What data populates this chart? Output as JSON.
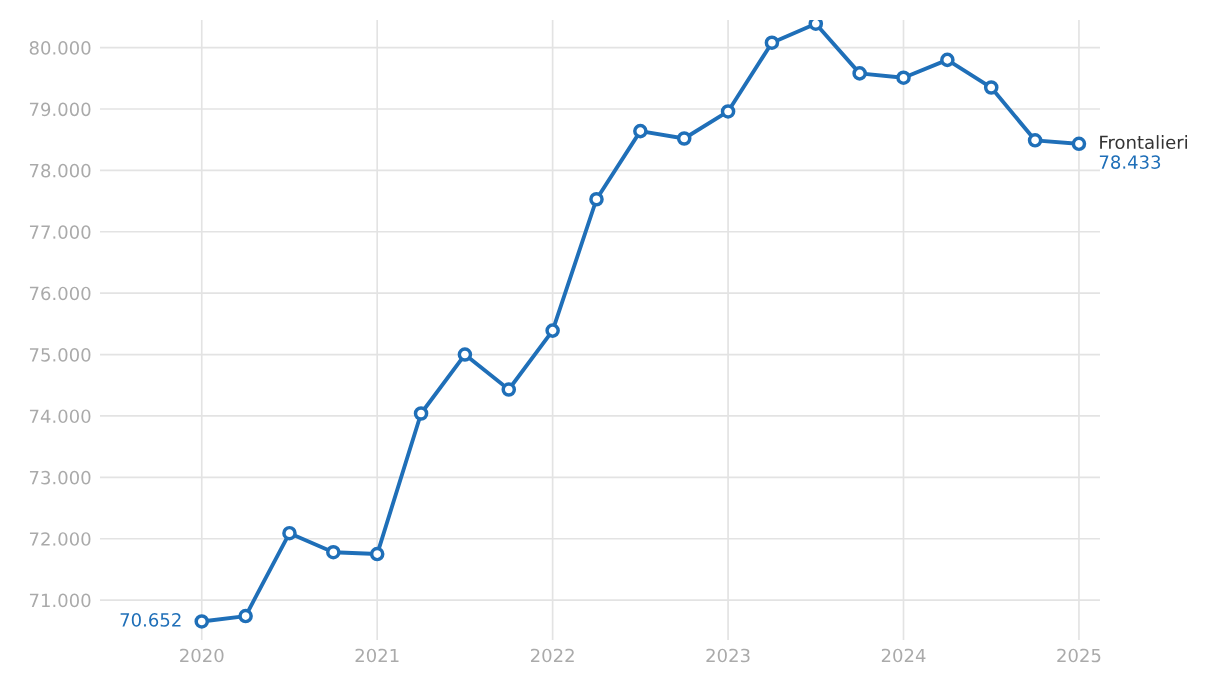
{
  "chart_data": {
    "type": "line",
    "x": [
      2020,
      2020.25,
      2020.5,
      2020.75,
      2021,
      2021.25,
      2021.5,
      2021.75,
      2022,
      2022.25,
      2022.5,
      2022.75,
      2023,
      2023.25,
      2023.5,
      2023.75,
      2024,
      2024.25,
      2024.5,
      2024.75,
      2025
    ],
    "series": [
      {
        "name": "Frontalieri",
        "color": "#1f6fb8",
        "values": [
          70652,
          70740,
          72090,
          71780,
          71750,
          74040,
          75000,
          74430,
          75390,
          77530,
          78640,
          78520,
          78960,
          80080,
          80390,
          79580,
          79510,
          79800,
          79350,
          78490,
          78433
        ],
        "value_labels": [
          "70.652",
          null,
          null,
          null,
          null,
          null,
          null,
          null,
          null,
          null,
          null,
          null,
          null,
          null,
          null,
          null,
          null,
          null,
          null,
          null,
          "78.433"
        ]
      }
    ],
    "xlim": [
      2019.42,
      2025.12
    ],
    "xticks": [
      2020,
      2021,
      2022,
      2023,
      2024,
      2025
    ],
    "ylim": [
      70350,
      80450
    ],
    "yticks": [
      {
        "value": 71000,
        "label": "71.000"
      },
      {
        "value": 72000,
        "label": "72.000"
      },
      {
        "value": 73000,
        "label": "73.000"
      },
      {
        "value": 74000,
        "label": "74.000"
      },
      {
        "value": 75000,
        "label": "75.000"
      },
      {
        "value": 76000,
        "label": "76.000"
      },
      {
        "value": 77000,
        "label": "77.000"
      },
      {
        "value": 78000,
        "label": "78.000"
      },
      {
        "value": 79000,
        "label": "79.000"
      },
      {
        "value": 80000,
        "label": "80.000"
      }
    ],
    "grid": true,
    "marker": "circle",
    "line_style": "solid",
    "legend": false
  }
}
